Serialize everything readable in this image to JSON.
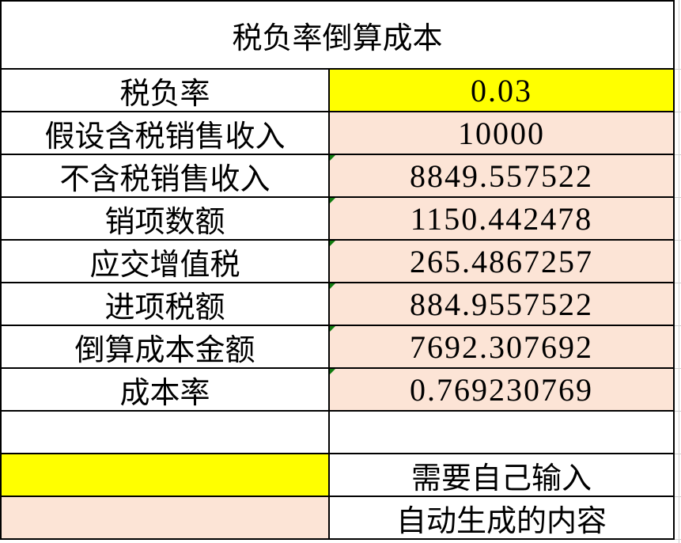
{
  "table": {
    "title": "税负率倒算成本",
    "rows": [
      {
        "label": "税负率",
        "value": "0.03",
        "bg": "input-yellow",
        "flag": false
      },
      {
        "label": "假设含税销售收入",
        "value": "10000",
        "bg": "auto-peach",
        "flag": false
      },
      {
        "label": "不含税销售收入",
        "value": "8849.557522",
        "bg": "auto-peach",
        "flag": true
      },
      {
        "label": "销项数额",
        "value": "1150.442478",
        "bg": "auto-peach",
        "flag": true
      },
      {
        "label": "应交增值税",
        "value": "265.4867257",
        "bg": "auto-peach",
        "flag": true
      },
      {
        "label": "进项税额",
        "value": "884.9557522",
        "bg": "auto-peach",
        "flag": true
      },
      {
        "label": "倒算成本金额",
        "value": "7692.307692",
        "bg": "auto-peach",
        "flag": true
      },
      {
        "label": "成本率",
        "value": "0.769230769",
        "bg": "auto-peach",
        "flag": true
      },
      {
        "label": "",
        "value": "",
        "bg": "",
        "flag": false
      }
    ]
  },
  "legend": {
    "items": [
      {
        "swatch": "input-yellow",
        "label": "需要自己输入"
      },
      {
        "swatch": "auto-peach",
        "label": "自动生成的内容"
      }
    ]
  },
  "colors": {
    "input-yellow": "#FFFF00",
    "auto-peach": "#FCE4D6",
    "flag-green": "#107C10",
    "border-black": "#000000",
    "gridline-gray": "#CFCFCF"
  }
}
